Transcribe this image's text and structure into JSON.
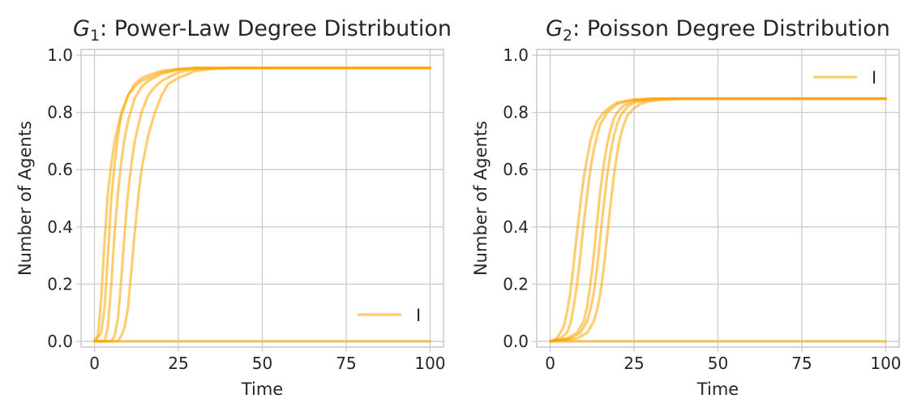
{
  "chart_data": [
    {
      "type": "line",
      "title_var": "G",
      "title_sub": "1",
      "title_rest": ": Power-Law Degree Distribution",
      "xlabel": "Time",
      "ylabel": "Number of Agents",
      "xlim": [
        -4,
        104
      ],
      "ylim": [
        -0.02,
        1.02
      ],
      "xticks": [
        0,
        25,
        50,
        75,
        100
      ],
      "yticks": [
        0.0,
        0.2,
        0.4,
        0.6,
        0.8,
        1.0
      ],
      "xtick_labels": [
        "0",
        "25",
        "50",
        "75",
        "100"
      ],
      "ytick_labels": [
        "0.0",
        "0.2",
        "0.4",
        "0.6",
        "0.8",
        "1.0"
      ],
      "grid": true,
      "legend": {
        "placement": "lower-right",
        "label": "I"
      },
      "line_color": "#ffa500",
      "series": [
        {
          "x": [
            0,
            1,
            2,
            3,
            4,
            5,
            6,
            8,
            10,
            12,
            14,
            16,
            20,
            25,
            30,
            40,
            100
          ],
          "values": [
            0.0,
            0.02,
            0.15,
            0.35,
            0.52,
            0.62,
            0.7,
            0.8,
            0.86,
            0.89,
            0.91,
            0.92,
            0.94,
            0.95,
            0.955,
            0.955,
            0.955
          ]
        },
        {
          "x": [
            0,
            2,
            3,
            4,
            5,
            6,
            7,
            8,
            10,
            12,
            14,
            16,
            20,
            25,
            30,
            40,
            100
          ],
          "values": [
            0.0,
            0.03,
            0.12,
            0.3,
            0.5,
            0.62,
            0.72,
            0.79,
            0.86,
            0.9,
            0.92,
            0.93,
            0.945,
            0.952,
            0.955,
            0.955,
            0.955
          ]
        },
        {
          "x": [
            0,
            3,
            4,
            5,
            6,
            7,
            8,
            9,
            10,
            12,
            14,
            16,
            20,
            25,
            30,
            40,
            100
          ],
          "values": [
            0.0,
            0.0,
            0.05,
            0.2,
            0.38,
            0.52,
            0.63,
            0.71,
            0.77,
            0.85,
            0.89,
            0.91,
            0.935,
            0.95,
            0.955,
            0.955,
            0.955
          ]
        },
        {
          "x": [
            0,
            5,
            6,
            7,
            8,
            9,
            10,
            11,
            12,
            14,
            16,
            18,
            20,
            25,
            30,
            40,
            100
          ],
          "values": [
            0.0,
            0.0,
            0.02,
            0.08,
            0.22,
            0.38,
            0.52,
            0.62,
            0.7,
            0.8,
            0.86,
            0.89,
            0.91,
            0.94,
            0.952,
            0.955,
            0.955
          ]
        },
        {
          "x": [
            0,
            7,
            8,
            9,
            10,
            11,
            12,
            13,
            14,
            16,
            18,
            20,
            22,
            25,
            30,
            35,
            40,
            100
          ],
          "values": [
            0.0,
            0.0,
            0.02,
            0.05,
            0.12,
            0.25,
            0.38,
            0.5,
            0.6,
            0.72,
            0.8,
            0.86,
            0.9,
            0.92,
            0.945,
            0.952,
            0.955,
            0.955
          ]
        },
        {
          "x": [
            0,
            100
          ],
          "values": [
            0.0,
            0.0
          ]
        }
      ]
    },
    {
      "type": "line",
      "title_var": "G",
      "title_sub": "2",
      "title_rest": ": Poisson Degree Distribution",
      "xlabel": "Time",
      "ylabel": "Number of Agents",
      "xlim": [
        -4,
        104
      ],
      "ylim": [
        -0.02,
        1.02
      ],
      "xticks": [
        0,
        25,
        50,
        75,
        100
      ],
      "yticks": [
        0.0,
        0.2,
        0.4,
        0.6,
        0.8,
        1.0
      ],
      "xtick_labels": [
        "0",
        "25",
        "50",
        "75",
        "100"
      ],
      "ytick_labels": [
        "0.0",
        "0.2",
        "0.4",
        "0.6",
        "0.8",
        "1.0"
      ],
      "grid": true,
      "legend": {
        "placement": "upper-right",
        "label": "I"
      },
      "line_color": "#ffa500",
      "series": [
        {
          "x": [
            0,
            2,
            4,
            5,
            6,
            7,
            8,
            9,
            10,
            11,
            12,
            13,
            14,
            16,
            18,
            20,
            25,
            30,
            40,
            100
          ],
          "values": [
            0.0,
            0.01,
            0.05,
            0.1,
            0.17,
            0.27,
            0.38,
            0.48,
            0.57,
            0.64,
            0.7,
            0.74,
            0.77,
            0.8,
            0.82,
            0.835,
            0.845,
            0.848,
            0.848,
            0.848
          ]
        },
        {
          "x": [
            0,
            3,
            5,
            6,
            7,
            8,
            9,
            10,
            11,
            12,
            13,
            14,
            15,
            17,
            20,
            25,
            30,
            40,
            100
          ],
          "values": [
            0.0,
            0.01,
            0.03,
            0.06,
            0.12,
            0.2,
            0.3,
            0.41,
            0.51,
            0.6,
            0.67,
            0.72,
            0.76,
            0.8,
            0.83,
            0.845,
            0.848,
            0.848,
            0.848
          ]
        },
        {
          "x": [
            0,
            5,
            8,
            10,
            11,
            12,
            13,
            14,
            15,
            16,
            17,
            18,
            19,
            20,
            22,
            25,
            30,
            35,
            40,
            100
          ],
          "values": [
            0.0,
            0.01,
            0.03,
            0.07,
            0.12,
            0.2,
            0.3,
            0.42,
            0.53,
            0.62,
            0.69,
            0.74,
            0.78,
            0.8,
            0.825,
            0.84,
            0.846,
            0.848,
            0.848,
            0.848
          ]
        },
        {
          "x": [
            0,
            6,
            9,
            11,
            12,
            13,
            14,
            15,
            16,
            17,
            18,
            19,
            20,
            21,
            23,
            25,
            30,
            35,
            40,
            100
          ],
          "values": [
            0.0,
            0.01,
            0.03,
            0.07,
            0.11,
            0.17,
            0.26,
            0.37,
            0.48,
            0.58,
            0.66,
            0.72,
            0.76,
            0.79,
            0.82,
            0.835,
            0.845,
            0.848,
            0.848,
            0.848
          ]
        },
        {
          "x": [
            0,
            8,
            11,
            13,
            14,
            15,
            16,
            17,
            18,
            19,
            20,
            21,
            22,
            23,
            25,
            27,
            30,
            35,
            40,
            100
          ],
          "values": [
            0.0,
            0.01,
            0.03,
            0.07,
            0.11,
            0.17,
            0.26,
            0.37,
            0.48,
            0.58,
            0.66,
            0.72,
            0.76,
            0.79,
            0.815,
            0.83,
            0.84,
            0.846,
            0.848,
            0.848
          ]
        },
        {
          "x": [
            0,
            100
          ],
          "values": [
            0.0,
            0.0
          ]
        }
      ]
    }
  ]
}
